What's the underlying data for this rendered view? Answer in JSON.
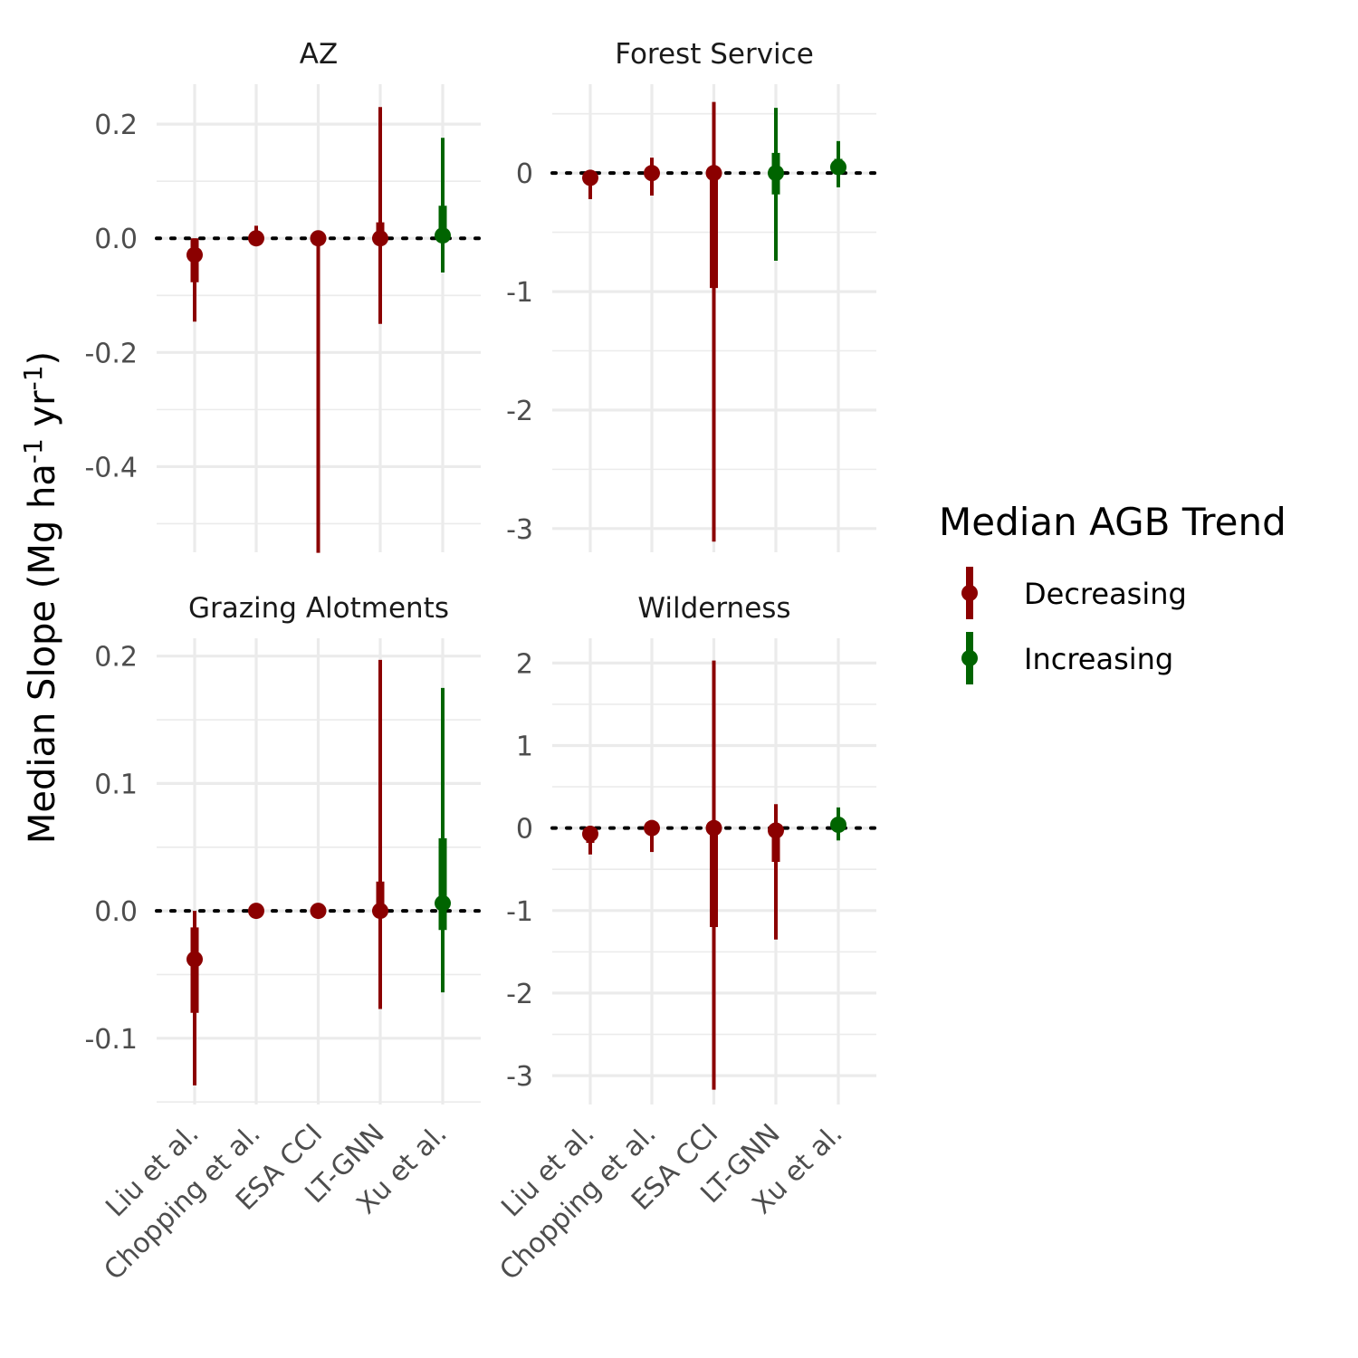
{
  "chart_data": {
    "type": "pointrange",
    "ylabel_main": "Median Slope (Mg ha",
    "ylabel_sup1": "-1",
    "ylabel_mid": " yr",
    "ylabel_sup2": "-1",
    "ylabel_end": ")",
    "categories": [
      "Liu et al.",
      "Chopping et al.",
      "ESA CCI",
      "LT-GNN",
      "Xu et al."
    ],
    "legend": {
      "title": "Median AGB Trend",
      "entries": [
        {
          "label": "Decreasing",
          "color": "#8b0000"
        },
        {
          "label": "Increasing",
          "color": "#006400"
        }
      ]
    },
    "colors": {
      "Decreasing": "#8b0000",
      "Increasing": "#006400"
    },
    "reference_line": 0,
    "panels": [
      {
        "title": "AZ",
        "ylim": [
          -0.55,
          0.27
        ],
        "major_ticks": [
          0.2,
          0.0,
          -0.2,
          -0.4
        ],
        "tick_labels": [
          "0.2",
          "0.0",
          "-0.2",
          "-0.4"
        ],
        "minor_ticks": [
          0.1,
          -0.1,
          -0.3,
          -0.5
        ],
        "points": [
          {
            "category": "Liu et al.",
            "trend": "Decreasing",
            "median": -0.029,
            "inner": [
              -0.077,
              0.0
            ],
            "outer": [
              -0.146,
              0.0
            ]
          },
          {
            "category": "Chopping et al.",
            "trend": "Decreasing",
            "median": 0.0,
            "inner": [
              0.0,
              0.003
            ],
            "outer": [
              0.0,
              0.022
            ]
          },
          {
            "category": "ESA CCI",
            "trend": "Decreasing",
            "median": 0.0,
            "inner": [
              0.0,
              0.0
            ],
            "outer": [
              -0.551,
              0.0
            ]
          },
          {
            "category": "LT-GNN",
            "trend": "Decreasing",
            "median": 0.0,
            "inner": [
              0.0,
              0.028
            ],
            "outer": [
              -0.15,
              0.23
            ]
          },
          {
            "category": "Xu et al.",
            "trend": "Increasing",
            "median": 0.005,
            "inner": [
              0.0,
              0.057
            ],
            "outer": [
              -0.06,
              0.176
            ]
          }
        ]
      },
      {
        "title": "Forest Service",
        "ylim": [
          -3.2,
          0.75
        ],
        "major_ticks": [
          0,
          -1,
          -2,
          -3
        ],
        "tick_labels": [
          "0",
          "-1",
          "-2",
          "-3"
        ],
        "minor_ticks": [
          0.5,
          -0.5,
          -1.5,
          -2.5
        ],
        "points": [
          {
            "category": "Liu et al.",
            "trend": "Decreasing",
            "median": -0.04,
            "inner": [
              -0.1,
              0.0
            ],
            "outer": [
              -0.22,
              0.0
            ]
          },
          {
            "category": "Chopping et al.",
            "trend": "Decreasing",
            "median": 0.0,
            "inner": [
              0.0,
              0.05
            ],
            "outer": [
              -0.19,
              0.13
            ]
          },
          {
            "category": "ESA CCI",
            "trend": "Decreasing",
            "median": 0.0,
            "inner": [
              -0.97,
              0.0
            ],
            "outer": [
              -3.11,
              0.6
            ]
          },
          {
            "category": "LT-GNN",
            "trend": "Increasing",
            "median": 0.0,
            "inner": [
              -0.18,
              0.17
            ],
            "outer": [
              -0.74,
              0.55
            ]
          },
          {
            "category": "Xu et al.",
            "trend": "Increasing",
            "median": 0.05,
            "inner": [
              0.0,
              0.12
            ],
            "outer": [
              -0.12,
              0.27
            ]
          }
        ]
      },
      {
        "title": "Grazing Alotments",
        "ylim": [
          -0.152,
          0.214
        ],
        "major_ticks": [
          0.2,
          0.1,
          0.0,
          -0.1
        ],
        "tick_labels": [
          "0.2",
          "0.1",
          "0.0",
          "-0.1"
        ],
        "minor_ticks": [
          0.15,
          0.05,
          -0.05,
          -0.15
        ],
        "points": [
          {
            "category": "Liu et al.",
            "trend": "Decreasing",
            "median": -0.038,
            "inner": [
              -0.08,
              -0.013
            ],
            "outer": [
              -0.137,
              0.0
            ]
          },
          {
            "category": "Chopping et al.",
            "trend": "Decreasing",
            "median": 0.0,
            "inner": [
              0.0,
              0.0
            ],
            "outer": [
              0.0,
              0.004
            ]
          },
          {
            "category": "ESA CCI",
            "trend": "Decreasing",
            "median": 0.0,
            "inner": [
              0.0,
              0.0
            ],
            "outer": [
              0.0,
              0.0
            ]
          },
          {
            "category": "LT-GNN",
            "trend": "Decreasing",
            "median": 0.0,
            "inner": [
              0.0,
              0.023
            ],
            "outer": [
              -0.077,
              0.197
            ]
          },
          {
            "category": "Xu et al.",
            "trend": "Increasing",
            "median": 0.006,
            "inner": [
              -0.015,
              0.057
            ],
            "outer": [
              -0.064,
              0.175
            ]
          }
        ]
      },
      {
        "title": "Wilderness",
        "ylim": [
          -3.35,
          2.3
        ],
        "major_ticks": [
          2,
          1,
          0,
          -1,
          -2,
          -3
        ],
        "tick_labels": [
          "2",
          "1",
          "0",
          "-1",
          "-2",
          "-3"
        ],
        "minor_ticks": [
          1.5,
          0.5,
          -0.5,
          -1.5,
          -2.5
        ],
        "points": [
          {
            "category": "Liu et al.",
            "trend": "Decreasing",
            "median": -0.07,
            "inner": [
              -0.18,
              0.0
            ],
            "outer": [
              -0.32,
              0.0
            ]
          },
          {
            "category": "Chopping et al.",
            "trend": "Decreasing",
            "median": 0.0,
            "inner": [
              -0.05,
              0.03
            ],
            "outer": [
              -0.29,
              0.05
            ]
          },
          {
            "category": "ESA CCI",
            "trend": "Decreasing",
            "median": 0.0,
            "inner": [
              -1.2,
              0.0
            ],
            "outer": [
              -3.17,
              2.03
            ]
          },
          {
            "category": "LT-GNN",
            "trend": "Decreasing",
            "median": -0.03,
            "inner": [
              -0.41,
              0.0
            ],
            "outer": [
              -1.35,
              0.29
            ]
          },
          {
            "category": "Xu et al.",
            "trend": "Increasing",
            "median": 0.04,
            "inner": [
              0.0,
              0.1
            ],
            "outer": [
              -0.15,
              0.25
            ]
          }
        ]
      }
    ]
  }
}
